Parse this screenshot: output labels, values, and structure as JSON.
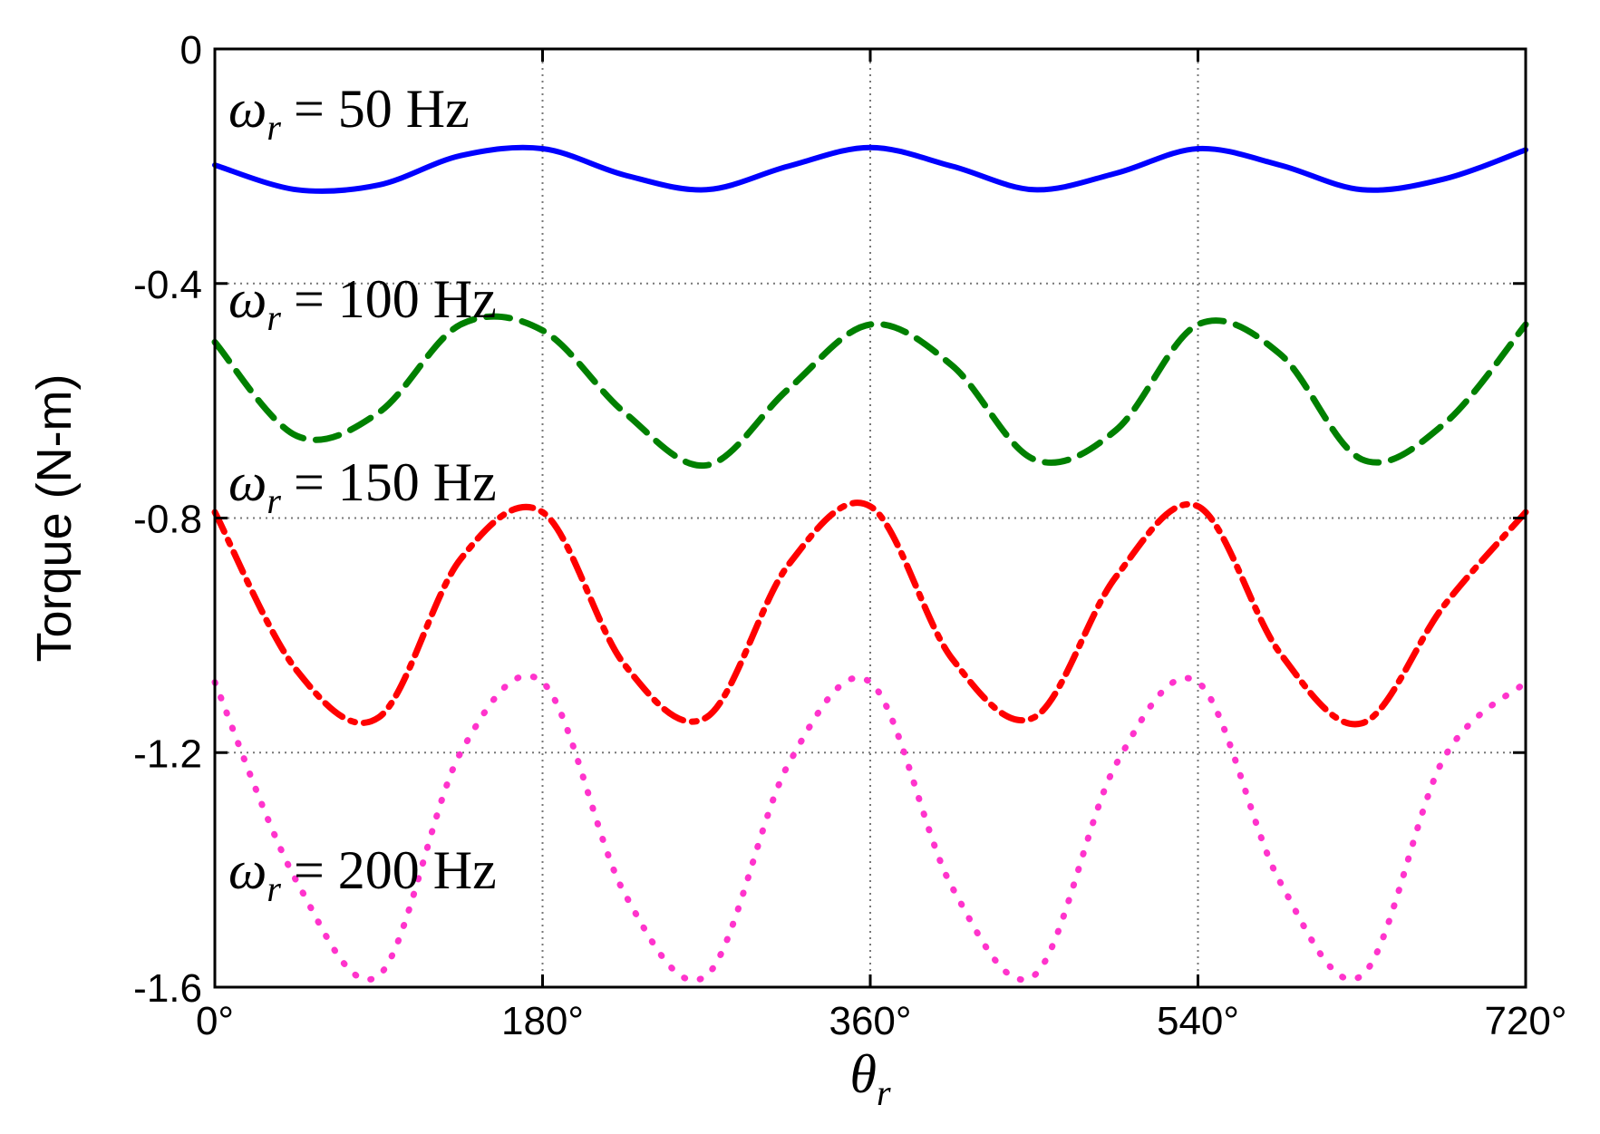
{
  "chart_data": {
    "type": "line",
    "title": "",
    "xlabel": "θr",
    "xlabel_symbol": "θ",
    "xlabel_sub": "r",
    "ylabel": "Torque (N-m)",
    "xlim": [
      0,
      720
    ],
    "ylim": [
      -1.6,
      0
    ],
    "xticks": [
      0,
      180,
      360,
      540,
      720
    ],
    "xtick_labels": [
      "0°",
      "180°",
      "360°",
      "540°",
      "720°"
    ],
    "yticks": [
      0,
      -0.4,
      -0.8,
      -1.2,
      -1.6
    ],
    "ytick_labels": [
      "0",
      "-0.4",
      "-0.8",
      "-1.2",
      "-1.6"
    ],
    "grid": true,
    "x_sample": [
      0,
      45,
      90,
      135,
      180,
      225,
      270,
      315,
      360,
      405,
      450,
      495,
      540,
      585,
      630,
      675,
      720
    ],
    "series": [
      {
        "name": "ωr = 50 Hz",
        "annotation_symbol": "ω",
        "annotation_sub": "r",
        "annotation_text": "= 50 Hz",
        "color": "#0000ff",
        "style": "solid",
        "values": [
          -0.198,
          -0.24,
          -0.232,
          -0.182,
          -0.17,
          -0.215,
          -0.24,
          -0.2,
          -0.168,
          -0.2,
          -0.24,
          -0.212,
          -0.17,
          -0.198,
          -0.24,
          -0.222,
          -0.172
        ]
      },
      {
        "name": "ωr = 100 Hz",
        "annotation_symbol": "ω",
        "annotation_sub": "r",
        "annotation_text": "= 100 Hz",
        "color": "#008000",
        "style": "dashed",
        "values": [
          -0.5,
          -0.66,
          -0.62,
          -0.47,
          -0.48,
          -0.62,
          -0.71,
          -0.58,
          -0.47,
          -0.54,
          -0.7,
          -0.65,
          -0.47,
          -0.52,
          -0.7,
          -0.64,
          -0.47
        ]
      },
      {
        "name": "ωr = 150 Hz",
        "annotation_symbol": "ω",
        "annotation_sub": "r",
        "annotation_text": "= 150 Hz",
        "color": "#ff0000",
        "style": "dashdot",
        "values": [
          -0.79,
          -1.06,
          -1.14,
          -0.87,
          -0.79,
          -1.05,
          -1.14,
          -0.88,
          -0.78,
          -1.04,
          -1.14,
          -0.9,
          -0.78,
          -1.03,
          -1.15,
          -0.95,
          -0.79
        ]
      },
      {
        "name": "ωr = 200 Hz",
        "annotation_symbol": "ω",
        "annotation_sub": "r",
        "annotation_text": "= 200 Hz",
        "color": "#ff33cc",
        "style": "dotted",
        "values": [
          -1.08,
          -1.42,
          -1.58,
          -1.2,
          -1.08,
          -1.44,
          -1.58,
          -1.22,
          -1.08,
          -1.43,
          -1.58,
          -1.22,
          -1.08,
          -1.42,
          -1.58,
          -1.21,
          -1.08
        ]
      }
    ]
  }
}
